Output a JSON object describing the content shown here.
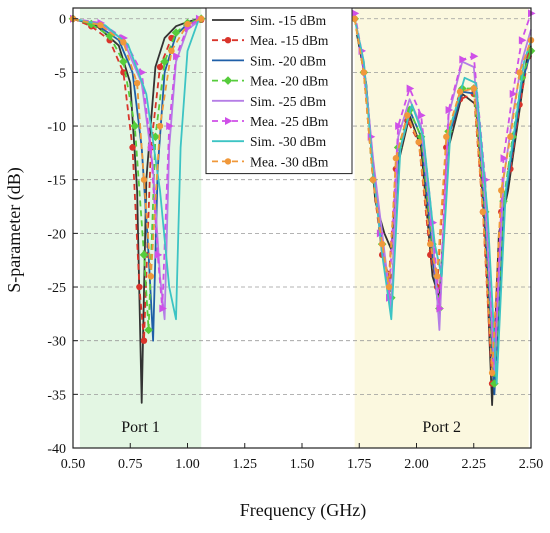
{
  "chart_data": {
    "type": "line",
    "xlabel": "Frequency (GHz)",
    "ylabel": "S-parameter (dB)",
    "xlim": [
      0.5,
      2.5
    ],
    "ylim": [
      -40,
      1
    ],
    "xticks": [
      "0.50",
      "0.75",
      "1.00",
      "1.25",
      "1.50",
      "1.75",
      "2.00",
      "2.25",
      "2.50"
    ],
    "yticks": [
      "0",
      "-5",
      "-10",
      "-15",
      "-20",
      "-25",
      "-30",
      "-35",
      "-40"
    ],
    "grid": "horizontal dashed",
    "legend_position": "top-center",
    "regions": [
      {
        "label": "Port 1",
        "x_start": 0.53,
        "x_end": 1.06,
        "color": "#e3f6e3"
      },
      {
        "label": "Port 2",
        "x_start": 1.73,
        "x_end": 2.49,
        "color": "#fbf8df"
      }
    ],
    "series": [
      {
        "name": "Sim. -15 dBm",
        "style": "solid",
        "marker": "none",
        "color": "#333333",
        "port1": {
          "x": [
            0.5,
            0.6,
            0.7,
            0.75,
            0.78,
            0.8,
            0.82,
            0.86,
            0.9,
            0.95,
            1.0,
            1.05
          ],
          "y": [
            0,
            -0.6,
            -2.5,
            -6,
            -16,
            -35.8,
            -15,
            -4.5,
            -1.8,
            -0.7,
            -0.3,
            0
          ]
        },
        "port2": {
          "x": [
            1.74,
            1.78,
            1.82,
            1.86,
            1.89,
            1.92,
            1.97,
            2.02,
            2.07,
            2.1,
            2.14,
            2.2,
            2.26,
            2.3,
            2.33,
            2.36,
            2.4,
            2.44,
            2.48,
            2.5
          ],
          "y": [
            -1.5,
            -6,
            -17,
            -20,
            -21.5,
            -13.5,
            -9,
            -12,
            -24,
            -26,
            -12,
            -7,
            -8,
            -20,
            -36,
            -20,
            -16,
            -10,
            -4,
            -2.5
          ]
        }
      },
      {
        "name": "Mea. -15 dBm",
        "style": "dashed",
        "marker": "circle",
        "color": "#d9342b",
        "port1": {
          "x": [
            0.5,
            0.58,
            0.66,
            0.72,
            0.76,
            0.79,
            0.81,
            0.84,
            0.88,
            0.93,
            1.0,
            1.06
          ],
          "y": [
            0,
            -0.7,
            -2,
            -5,
            -12,
            -25,
            -30,
            -12,
            -4.5,
            -1.8,
            -0.6,
            -0.1
          ]
        },
        "port2": {
          "x": [
            1.73,
            1.77,
            1.81,
            1.85,
            1.88,
            1.91,
            1.96,
            2.01,
            2.06,
            2.09,
            2.13,
            2.19,
            2.25,
            2.29,
            2.33,
            2.37,
            2.41,
            2.45,
            2.49
          ],
          "y": [
            0,
            -5,
            -15,
            -22,
            -24,
            -14,
            -9.5,
            -11.5,
            -22,
            -25,
            -12,
            -7.5,
            -7,
            -18,
            -34,
            -18,
            -14,
            -8,
            -3.5
          ]
        }
      },
      {
        "name": "Sim. -20 dBm",
        "style": "solid",
        "marker": "none",
        "color": "#1f5fa8",
        "port1": {
          "x": [
            0.5,
            0.6,
            0.7,
            0.76,
            0.8,
            0.83,
            0.85,
            0.87,
            0.9,
            0.95,
            1.0,
            1.05
          ],
          "y": [
            0,
            -0.5,
            -2,
            -5,
            -12,
            -22,
            -30,
            -14,
            -5,
            -1.5,
            -0.5,
            0
          ]
        },
        "port2": {
          "x": [
            1.74,
            1.78,
            1.82,
            1.86,
            1.89,
            1.92,
            1.97,
            2.02,
            2.07,
            2.1,
            2.14,
            2.2,
            2.26,
            2.3,
            2.34,
            2.38,
            2.42,
            2.46,
            2.5
          ],
          "y": [
            -1,
            -6,
            -16,
            -22,
            -27,
            -13,
            -8.5,
            -11,
            -22,
            -28,
            -11,
            -6.8,
            -7,
            -19,
            -35,
            -18,
            -12,
            -6,
            -3
          ]
        }
      },
      {
        "name": "Mea. -20 dBm",
        "style": "dashed",
        "marker": "diamond",
        "color": "#56cc3b",
        "port1": {
          "x": [
            0.5,
            0.58,
            0.66,
            0.72,
            0.77,
            0.81,
            0.83,
            0.86,
            0.9,
            0.95,
            1.0,
            1.06
          ],
          "y": [
            0,
            -0.5,
            -1.6,
            -4,
            -10,
            -22,
            -29,
            -11,
            -4,
            -1.3,
            -0.4,
            0
          ]
        },
        "port2": {
          "x": [
            1.73,
            1.77,
            1.81,
            1.85,
            1.89,
            1.92,
            1.97,
            2.02,
            2.07,
            2.1,
            2.14,
            2.2,
            2.25,
            2.3,
            2.34,
            2.38,
            2.42,
            2.46,
            2.5
          ],
          "y": [
            0,
            -5,
            -15,
            -21,
            -26,
            -12,
            -8.5,
            -11,
            -21,
            -27,
            -10.5,
            -6.5,
            -6.5,
            -18,
            -34,
            -17,
            -11,
            -5.5,
            -3
          ]
        }
      },
      {
        "name": "Sim. -25 dBm",
        "style": "solid",
        "marker": "none",
        "color": "#b57ee6",
        "port1": {
          "x": [
            0.5,
            0.62,
            0.72,
            0.8,
            0.85,
            0.88,
            0.9,
            0.92,
            0.95,
            1.0,
            1.05
          ],
          "y": [
            0,
            -0.5,
            -2,
            -6,
            -14,
            -24,
            -28,
            -12,
            -4,
            -1,
            -0.2
          ]
        },
        "port2": {
          "x": [
            1.73,
            1.77,
            1.81,
            1.85,
            1.89,
            1.92,
            1.97,
            2.02,
            2.07,
            2.1,
            2.14,
            2.2,
            2.25,
            2.3,
            2.34,
            2.38,
            2.42,
            2.46,
            2.5
          ],
          "y": [
            0,
            -4,
            -13,
            -20,
            -27,
            -11,
            -7.5,
            -10,
            -20,
            -29,
            -9,
            -4,
            -4.5,
            -17,
            -33,
            -15,
            -9,
            -4,
            -1
          ]
        }
      },
      {
        "name": "Mea. -25 dBm",
        "style": "dashed",
        "marker": "triangle",
        "color": "#cf4fe8",
        "port1": {
          "x": [
            0.5,
            0.62,
            0.72,
            0.8,
            0.84,
            0.87,
            0.89,
            0.92,
            0.95,
            1.0,
            1.05
          ],
          "y": [
            0,
            -0.4,
            -1.8,
            -5,
            -12,
            -22,
            -27,
            -10,
            -3.5,
            -0.8,
            0
          ]
        },
        "port2": {
          "x": [
            1.73,
            1.76,
            1.8,
            1.84,
            1.88,
            1.92,
            1.97,
            2.02,
            2.07,
            2.1,
            2.14,
            2.2,
            2.25,
            2.3,
            2.34,
            2.38,
            2.42,
            2.46,
            2.5
          ],
          "y": [
            0.5,
            -3,
            -11,
            -20,
            -26,
            -10,
            -6.5,
            -9,
            -19,
            -27,
            -8.5,
            -3.8,
            -3.5,
            -15,
            -32,
            -13,
            -7,
            -2,
            0.5
          ]
        }
      },
      {
        "name": "Sim. -30 dBm",
        "style": "solid",
        "marker": "none",
        "color": "#3cc4c4",
        "port1": {
          "x": [
            0.5,
            0.64,
            0.74,
            0.82,
            0.88,
            0.92,
            0.95,
            0.97,
            1.0,
            1.05
          ],
          "y": [
            0,
            -0.6,
            -2.4,
            -7,
            -16,
            -25,
            -28,
            -12,
            -3,
            0
          ]
        },
        "port2": {
          "x": [
            1.73,
            1.77,
            1.81,
            1.85,
            1.89,
            1.93,
            1.98,
            2.03,
            2.08,
            2.11,
            2.15,
            2.21,
            2.26,
            2.31,
            2.35,
            2.39,
            2.43,
            2.47,
            2.5
          ],
          "y": [
            0,
            -4,
            -14,
            -22,
            -28,
            -12,
            -8,
            -11,
            -21,
            -24,
            -10,
            -5.5,
            -6,
            -18,
            -34,
            -16,
            -10,
            -4,
            -2
          ]
        }
      },
      {
        "name": "Mea. -30 dBm",
        "style": "dashed",
        "marker": "circle",
        "color": "#f0983a",
        "port1": {
          "x": [
            0.5,
            0.62,
            0.72,
            0.78,
            0.81,
            0.84,
            0.88,
            0.93,
            1.0,
            1.06
          ],
          "y": [
            0,
            -0.6,
            -2.2,
            -6,
            -15,
            -24,
            -10,
            -3,
            -0.5,
            0
          ]
        },
        "port2": {
          "x": [
            1.73,
            1.77,
            1.81,
            1.85,
            1.88,
            1.91,
            1.96,
            2.01,
            2.06,
            2.09,
            2.13,
            2.19,
            2.25,
            2.29,
            2.33,
            2.37,
            2.41,
            2.45,
            2.5
          ],
          "y": [
            0,
            -5,
            -15,
            -21,
            -25,
            -13,
            -9,
            -11.5,
            -21,
            -24,
            -11,
            -6.8,
            -6.5,
            -18,
            -33,
            -16,
            -11,
            -5,
            -2
          ]
        }
      }
    ]
  }
}
